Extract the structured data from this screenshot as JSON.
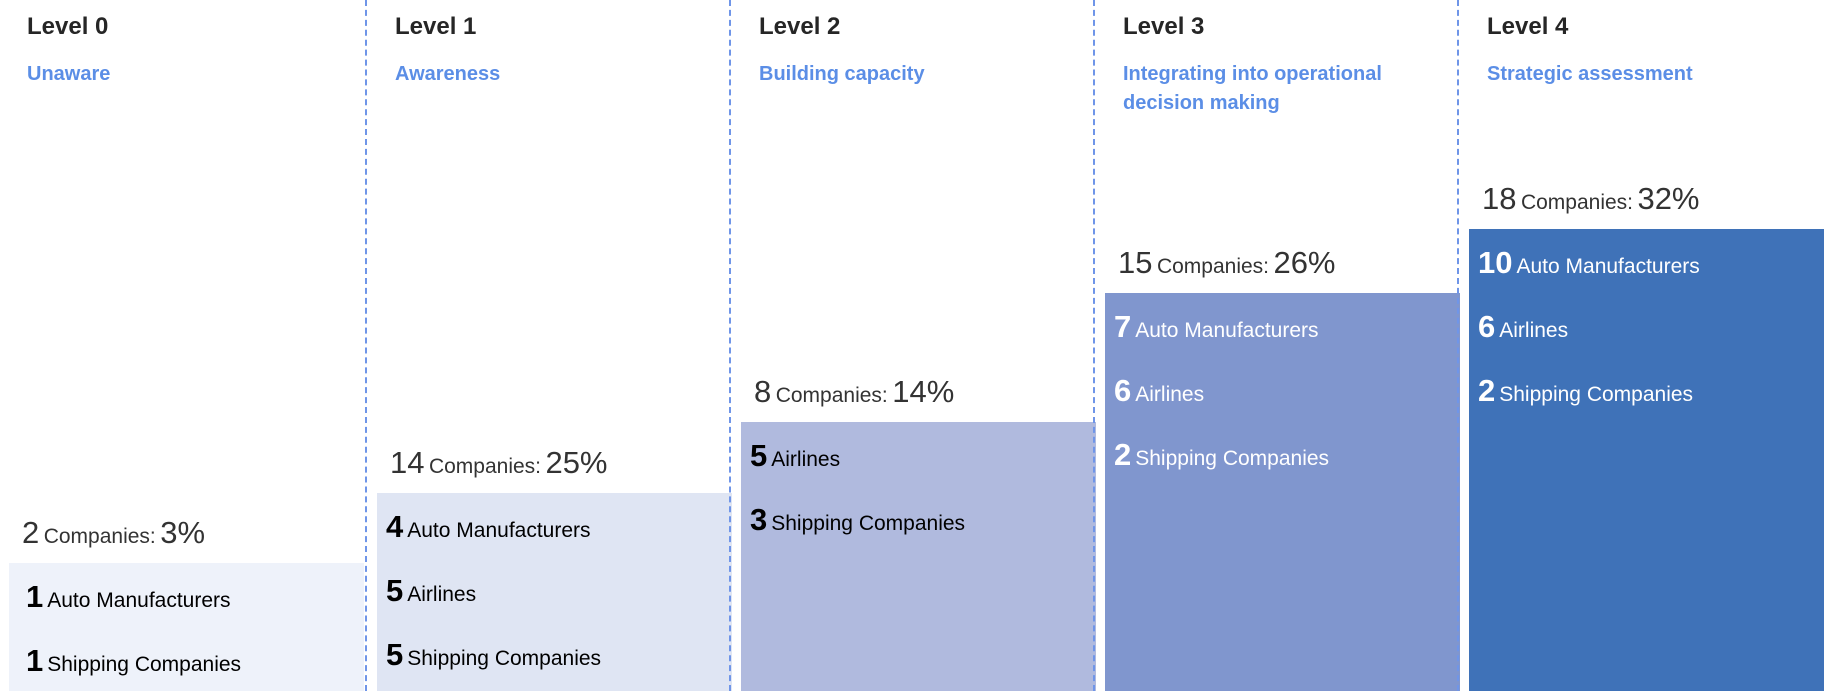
{
  "levels": [
    {
      "level": "Level 0",
      "name": "Unaware",
      "total": "2",
      "total_label": "Companies:",
      "percent": "3%",
      "groups": [
        {
          "count": "1",
          "label": "Auto Manufacturers"
        },
        {
          "count": "1",
          "label": "Shipping Companies"
        }
      ]
    },
    {
      "level": "Level 1",
      "name": "Awareness",
      "total": "14",
      "total_label": "Companies:",
      "percent": "25%",
      "groups": [
        {
          "count": "4",
          "label": "Auto Manufacturers"
        },
        {
          "count": "5",
          "label": "Airlines"
        },
        {
          "count": "5",
          "label": "Shipping Companies"
        }
      ]
    },
    {
      "level": "Level 2",
      "name": "Building capacity",
      "total": "8",
      "total_label": "Companies:",
      "percent": "14%",
      "groups": [
        {
          "count": "5",
          "label": "Airlines"
        },
        {
          "count": "3",
          "label": "Shipping Companies"
        }
      ]
    },
    {
      "level": "Level 3",
      "name": "Integrating into operational decision making",
      "total": "15",
      "total_label": "Companies:",
      "percent": "26%",
      "groups": [
        {
          "count": "7",
          "label": "Auto Manufacturers"
        },
        {
          "count": "6",
          "label": "Airlines"
        },
        {
          "count": "2",
          "label": "Shipping Companies"
        }
      ]
    },
    {
      "level": "Level 4",
      "name": "Strategic assessment",
      "total": "18",
      "total_label": "Companies:",
      "percent": "32%",
      "groups": [
        {
          "count": "10",
          "label": "Auto Manufacturers"
        },
        {
          "count": "6",
          "label": "Airlines"
        },
        {
          "count": "2",
          "label": "Shipping Companies"
        }
      ]
    }
  ]
}
